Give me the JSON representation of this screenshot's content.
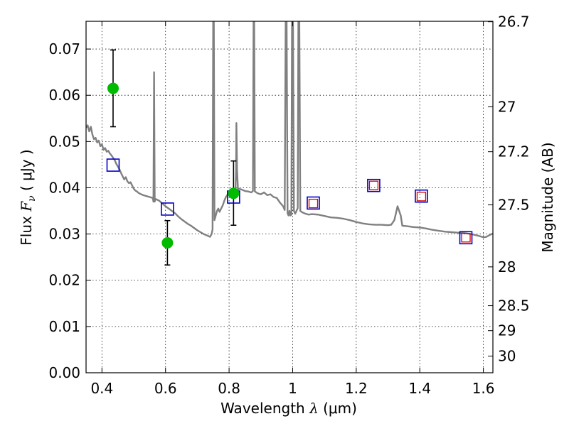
{
  "chart_data": {
    "type": "scatter",
    "xlabel": "Wavelength",
    "xlabel_symbol": "λ",
    "xlabel_unit": "(μm)",
    "ylabel": "Flux",
    "ylabel_symbol": "F",
    "ylabel_sub": "ν",
    "ylabel_unit": "( μJy )",
    "y2label": "Magnitude (AB)",
    "xlim": [
      0.35,
      1.63
    ],
    "ylim": [
      0.0,
      0.076
    ],
    "grid": true,
    "x_ticks": [
      {
        "value": 0.4,
        "label": "0.4"
      },
      {
        "value": 0.6,
        "label": "0.6"
      },
      {
        "value": 0.8,
        "label": "0.8"
      },
      {
        "value": 1.0,
        "label": "1"
      },
      {
        "value": 1.2,
        "label": "1.2"
      },
      {
        "value": 1.4,
        "label": "1.4"
      },
      {
        "value": 1.6,
        "label": "1.6"
      }
    ],
    "y_ticks": [
      {
        "value": 0.0,
        "label": "0.00"
      },
      {
        "value": 0.01,
        "label": "0.01"
      },
      {
        "value": 0.02,
        "label": "0.02"
      },
      {
        "value": 0.03,
        "label": "0.03"
      },
      {
        "value": 0.04,
        "label": "0.04"
      },
      {
        "value": 0.05,
        "label": "0.05"
      },
      {
        "value": 0.06,
        "label": "0.06"
      },
      {
        "value": 0.07,
        "label": "0.07"
      }
    ],
    "y2_ticks": [
      {
        "flux": 0.0759,
        "label": "26.7"
      },
      {
        "flux": 0.0575,
        "label": "27"
      },
      {
        "flux": 0.0478,
        "label": "27.2"
      },
      {
        "flux": 0.0363,
        "label": "27.5"
      },
      {
        "flux": 0.0229,
        "label": "28"
      },
      {
        "flux": 0.0145,
        "label": "28.5"
      },
      {
        "flux": 0.0091,
        "label": "29"
      },
      {
        "flux": 0.0036,
        "label": "30"
      }
    ],
    "observed_points": {
      "color": "#00bb00",
      "points": [
        {
          "x": 0.435,
          "y": 0.0615,
          "err_low": 0.0532,
          "err_high": 0.0698
        },
        {
          "x": 0.606,
          "y": 0.0281,
          "err_low": 0.0233,
          "err_high": 0.0329
        },
        {
          "x": 0.814,
          "y": 0.0388,
          "err_low": 0.0319,
          "err_high": 0.0458
        }
      ]
    },
    "model_photometry": {
      "color": "#0000cc",
      "points": [
        {
          "x": 0.435,
          "y": 0.0449
        },
        {
          "x": 0.606,
          "y": 0.0354
        },
        {
          "x": 0.814,
          "y": 0.038
        },
        {
          "x": 1.065,
          "y": 0.0367
        },
        {
          "x": 1.255,
          "y": 0.0405
        },
        {
          "x": 1.405,
          "y": 0.0382
        },
        {
          "x": 1.545,
          "y": 0.0292
        }
      ]
    },
    "observed_nir": {
      "color": "#dd0000",
      "points": [
        {
          "x": 1.065,
          "y": 0.0366
        },
        {
          "x": 1.255,
          "y": 0.0405
        },
        {
          "x": 1.405,
          "y": 0.0381
        },
        {
          "x": 1.545,
          "y": 0.0292
        }
      ]
    },
    "model_spectrum": {
      "color": "#808080",
      "points": [
        [
          0.35,
          0.053
        ],
        [
          0.355,
          0.0535
        ],
        [
          0.36,
          0.0522
        ],
        [
          0.365,
          0.0532
        ],
        [
          0.37,
          0.0515
        ],
        [
          0.375,
          0.0505
        ],
        [
          0.38,
          0.0508
        ],
        [
          0.385,
          0.0498
        ],
        [
          0.39,
          0.0502
        ],
        [
          0.395,
          0.049
        ],
        [
          0.4,
          0.0494
        ],
        [
          0.405,
          0.0482
        ],
        [
          0.41,
          0.0486
        ],
        [
          0.415,
          0.0478
        ],
        [
          0.42,
          0.048
        ],
        [
          0.425,
          0.0474
        ],
        [
          0.43,
          0.047
        ],
        [
          0.435,
          0.0465
        ],
        [
          0.44,
          0.046
        ],
        [
          0.445,
          0.0452
        ],
        [
          0.45,
          0.0446
        ],
        [
          0.455,
          0.044
        ],
        [
          0.46,
          0.0432
        ],
        [
          0.465,
          0.0425
        ],
        [
          0.47,
          0.0418
        ],
        [
          0.475,
          0.0423
        ],
        [
          0.48,
          0.0414
        ],
        [
          0.485,
          0.041
        ],
        [
          0.49,
          0.0412
        ],
        [
          0.495,
          0.0405
        ],
        [
          0.5,
          0.0398
        ],
        [
          0.505,
          0.0394
        ],
        [
          0.51,
          0.0392
        ],
        [
          0.515,
          0.0389
        ],
        [
          0.52,
          0.0387
        ],
        [
          0.53,
          0.0384
        ],
        [
          0.54,
          0.0382
        ],
        [
          0.55,
          0.038
        ],
        [
          0.56,
          0.0378
        ],
        [
          0.562,
          0.037
        ],
        [
          0.564,
          0.065
        ],
        [
          0.566,
          0.037
        ],
        [
          0.568,
          0.0376
        ],
        [
          0.58,
          0.0372
        ],
        [
          0.59,
          0.0366
        ],
        [
          0.6,
          0.036
        ],
        [
          0.61,
          0.0355
        ],
        [
          0.62,
          0.035
        ],
        [
          0.63,
          0.0345
        ],
        [
          0.64,
          0.0338
        ],
        [
          0.65,
          0.0332
        ],
        [
          0.66,
          0.0327
        ],
        [
          0.67,
          0.0322
        ],
        [
          0.68,
          0.0318
        ],
        [
          0.69,
          0.0313
        ],
        [
          0.7,
          0.0308
        ],
        [
          0.71,
          0.0304
        ],
        [
          0.72,
          0.03
        ],
        [
          0.73,
          0.0297
        ],
        [
          0.74,
          0.0294
        ],
        [
          0.745,
          0.03
        ],
        [
          0.748,
          0.031
        ],
        [
          0.75,
          0.076
        ],
        [
          0.752,
          0.076
        ],
        [
          0.754,
          0.033
        ],
        [
          0.758,
          0.034
        ],
        [
          0.762,
          0.035
        ],
        [
          0.766,
          0.0355
        ],
        [
          0.77,
          0.0348
        ],
        [
          0.775,
          0.0355
        ],
        [
          0.78,
          0.0362
        ],
        [
          0.785,
          0.0372
        ],
        [
          0.79,
          0.038
        ],
        [
          0.795,
          0.0385
        ],
        [
          0.8,
          0.0388
        ],
        [
          0.805,
          0.0392
        ],
        [
          0.81,
          0.0395
        ],
        [
          0.815,
          0.039
        ],
        [
          0.818,
          0.038
        ],
        [
          0.82,
          0.039
        ],
        [
          0.822,
          0.044
        ],
        [
          0.823,
          0.054
        ],
        [
          0.825,
          0.044
        ],
        [
          0.828,
          0.0395
        ],
        [
          0.83,
          0.0398
        ],
        [
          0.84,
          0.0396
        ],
        [
          0.85,
          0.0393
        ],
        [
          0.86,
          0.0392
        ],
        [
          0.87,
          0.039
        ],
        [
          0.875,
          0.0393
        ],
        [
          0.877,
          0.076
        ],
        [
          0.879,
          0.076
        ],
        [
          0.881,
          0.0392
        ],
        [
          0.89,
          0.0388
        ],
        [
          0.9,
          0.0386
        ],
        [
          0.91,
          0.039
        ],
        [
          0.92,
          0.0384
        ],
        [
          0.93,
          0.0386
        ],
        [
          0.94,
          0.038
        ],
        [
          0.95,
          0.0378
        ],
        [
          0.96,
          0.0368
        ],
        [
          0.97,
          0.036
        ],
        [
          0.975,
          0.0352
        ],
        [
          0.978,
          0.076
        ],
        [
          0.981,
          0.076
        ],
        [
          0.984,
          0.0345
        ],
        [
          0.987,
          0.034
        ],
        [
          0.99,
          0.035
        ],
        [
          0.993,
          0.034
        ],
        [
          0.996,
          0.0342
        ],
        [
          0.998,
          0.076
        ],
        [
          1.001,
          0.076
        ],
        [
          1.004,
          0.035
        ],
        [
          1.008,
          0.0344
        ],
        [
          1.012,
          0.035
        ],
        [
          1.016,
          0.0356
        ],
        [
          1.018,
          0.076
        ],
        [
          1.021,
          0.076
        ],
        [
          1.024,
          0.035
        ],
        [
          1.03,
          0.0347
        ],
        [
          1.04,
          0.0344
        ],
        [
          1.05,
          0.0342
        ],
        [
          1.06,
          0.0343
        ],
        [
          1.08,
          0.0342
        ],
        [
          1.1,
          0.0339
        ],
        [
          1.12,
          0.0336
        ],
        [
          1.14,
          0.0335
        ],
        [
          1.16,
          0.0333
        ],
        [
          1.18,
          0.033
        ],
        [
          1.2,
          0.0326
        ],
        [
          1.22,
          0.0323
        ],
        [
          1.24,
          0.0321
        ],
        [
          1.26,
          0.032
        ],
        [
          1.28,
          0.032
        ],
        [
          1.3,
          0.0319
        ],
        [
          1.31,
          0.032
        ],
        [
          1.32,
          0.033
        ],
        [
          1.33,
          0.036
        ],
        [
          1.34,
          0.034
        ],
        [
          1.345,
          0.0318
        ],
        [
          1.36,
          0.0317
        ],
        [
          1.38,
          0.0315
        ],
        [
          1.4,
          0.0314
        ],
        [
          1.42,
          0.0312
        ],
        [
          1.44,
          0.0309
        ],
        [
          1.46,
          0.0307
        ],
        [
          1.48,
          0.0305
        ],
        [
          1.5,
          0.0304
        ],
        [
          1.52,
          0.0303
        ],
        [
          1.54,
          0.0302
        ],
        [
          1.56,
          0.03
        ],
        [
          1.58,
          0.0297
        ],
        [
          1.6,
          0.0293
        ],
        [
          1.61,
          0.0294
        ],
        [
          1.62,
          0.0298
        ],
        [
          1.63,
          0.0301
        ]
      ]
    }
  }
}
